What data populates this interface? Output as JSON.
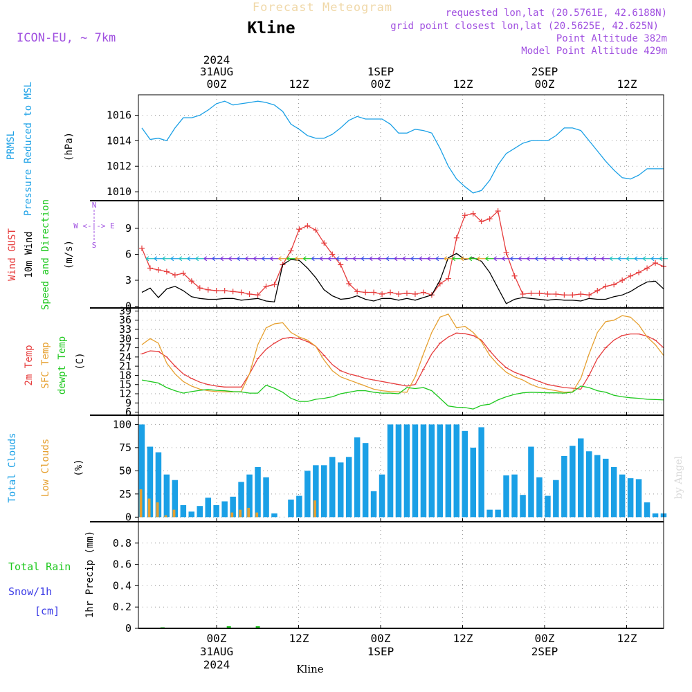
{
  "header": {
    "title": "Forecast Meteogram",
    "location": "Kline",
    "model": "ICON-EU, ~ 7km",
    "requested": "requested lon,lat (20.5761E, 42.6188N)",
    "gridpoint": "grid point closest lon,lat (20.5625E, 42.625N)",
    "point_alt": "Point Altitude 382m",
    "model_alt": "Model Point Altitude 429m"
  },
  "top_axis": {
    "labels": [
      {
        "line1": "2024",
        "line2": "31AUG",
        "line3": "00Z"
      },
      {
        "line1": "",
        "line2": "",
        "line3": "12Z"
      },
      {
        "line1": "",
        "line2": "1SEP",
        "line3": "00Z"
      },
      {
        "line1": "",
        "line2": "",
        "line3": "12Z"
      },
      {
        "line1": "",
        "line2": "2SEP",
        "line3": "00Z"
      },
      {
        "line1": "",
        "line2": "",
        "line3": "12Z"
      }
    ]
  },
  "bottom_axis": {
    "labels": [
      {
        "line1": "00Z",
        "line2": "31AUG",
        "line3": "2024"
      },
      {
        "line1": "12Z",
        "line2": "",
        "line3": ""
      },
      {
        "line1": "00Z",
        "line2": "1SEP",
        "line3": ""
      },
      {
        "line1": "12Z",
        "line2": "",
        "line3": ""
      },
      {
        "line1": "00Z",
        "line2": "2SEP",
        "line3": ""
      },
      {
        "line1": "12Z",
        "line2": "",
        "line3": ""
      }
    ],
    "footer": "Kline"
  },
  "watermark": "by Angel",
  "colors": {
    "pressure": "#1aa0e6",
    "gust": "#e63c3c",
    "wind": "#000000",
    "temp2m": "#e63c3c",
    "sfc": "#e6a030",
    "dewpt": "#1ec81e",
    "total_clouds": "#1aa0e6",
    "low_clouds": "#e6a030",
    "rain": "#1ec81e",
    "snow": "#3c3ce6",
    "header": "#a050e0"
  },
  "panel_labels": {
    "pressure": [
      "PRMSL",
      "Pressure Reduced to MSL",
      "(hPa)"
    ],
    "wind": [
      "Wind GUST",
      "10m Wind",
      "Speed and Direction",
      "(m/s)"
    ],
    "compass": [
      "N",
      "S",
      "W <-|-> E"
    ],
    "temp": [
      "2m Temp",
      "SFC Temp",
      "dewpt Temp",
      "(C)"
    ],
    "clouds": [
      "Total Clouds",
      "Low Clouds",
      "(%)"
    ],
    "precip": [
      "Total   Rain",
      "Snow/1h",
      "[cm]",
      "1hr Precip (mm)"
    ]
  },
  "chart_data": [
    {
      "type": "line",
      "panel": "pressure",
      "x_hours": [
        0,
        2,
        4,
        6,
        8,
        10,
        12,
        14,
        16,
        18,
        20,
        22,
        24,
        26,
        28,
        30,
        32,
        34,
        36,
        38,
        40,
        42,
        44,
        46,
        48,
        50,
        52,
        54,
        56,
        58,
        60,
        62,
        64,
        66,
        68,
        70,
        72,
        74,
        76,
        78,
        80,
        82,
        84,
        86,
        88,
        90,
        92,
        94,
        96,
        98,
        100,
        102,
        104,
        106,
        108,
        110,
        112,
        114,
        116,
        118,
        120,
        122,
        124,
        126
      ],
      "series": [
        {
          "name": "PRMSL",
          "values": [
            1015.0,
            1014.1,
            1014.2,
            1014.0,
            1015.0,
            1015.8,
            1015.8,
            1016.0,
            1016.4,
            1016.9,
            1017.1,
            1016.8,
            1016.9,
            1017.0,
            1017.1,
            1017.0,
            1016.8,
            1016.3,
            1015.3,
            1014.9,
            1014.4,
            1014.2,
            1014.2,
            1014.5,
            1015.0,
            1015.6,
            1015.9,
            1015.7,
            1015.7,
            1015.7,
            1015.3,
            1014.6,
            1014.6,
            1014.9,
            1014.8,
            1014.6,
            1013.4,
            1012.0,
            1011.0,
            1010.4,
            1009.9,
            1010.1,
            1010.9,
            1012.1,
            1013.0,
            1013.4,
            1013.8,
            1014.0,
            1014.0,
            1014.0,
            1014.4,
            1015.0,
            1015.0,
            1014.8,
            1014.0,
            1013.2,
            1012.4,
            1011.7,
            1011.1,
            1011.0,
            1011.3,
            1011.8,
            1011.8,
            1011.8
          ]
        }
      ],
      "ylabel": "(hPa)",
      "ylim": [
        1009.3,
        1017.6
      ],
      "yticks": [
        1010,
        1012,
        1014,
        1016
      ]
    },
    {
      "type": "line",
      "panel": "wind",
      "x_hours": [
        0,
        2,
        4,
        6,
        8,
        10,
        12,
        14,
        16,
        18,
        20,
        22,
        24,
        26,
        28,
        30,
        32,
        34,
        36,
        38,
        40,
        42,
        44,
        46,
        48,
        50,
        52,
        54,
        56,
        58,
        60,
        62,
        64,
        66,
        68,
        70,
        72,
        74,
        76,
        78,
        80,
        82,
        84,
        86,
        88,
        90,
        92,
        94,
        96,
        98,
        100,
        102,
        104,
        106,
        108,
        110,
        112,
        114,
        116,
        118,
        120,
        122,
        124,
        126
      ],
      "series": [
        {
          "name": "Wind GUST",
          "values": [
            6.7,
            4.4,
            4.2,
            4.0,
            3.6,
            3.8,
            2.9,
            2.1,
            1.9,
            1.8,
            1.8,
            1.7,
            1.6,
            1.4,
            1.3,
            2.3,
            2.5,
            4.8,
            6.4,
            8.9,
            9.3,
            8.8,
            7.3,
            6.0,
            4.8,
            2.6,
            1.7,
            1.6,
            1.6,
            1.4,
            1.6,
            1.4,
            1.5,
            1.4,
            1.6,
            1.3,
            2.6,
            3.2,
            7.9,
            10.5,
            10.7,
            9.8,
            10.1,
            11.0,
            6.2,
            3.5,
            1.4,
            1.5,
            1.5,
            1.4,
            1.4,
            1.3,
            1.3,
            1.4,
            1.3,
            1.8,
            2.3,
            2.5,
            3.0,
            3.5,
            3.9,
            4.4,
            5.0,
            4.6
          ]
        },
        {
          "name": "10m Wind",
          "values": [
            1.6,
            2.1,
            1.0,
            2.0,
            2.3,
            1.8,
            1.1,
            0.9,
            0.8,
            0.8,
            0.9,
            0.9,
            0.7,
            0.8,
            0.9,
            0.6,
            0.5,
            4.8,
            5.4,
            5.3,
            4.4,
            3.3,
            1.9,
            1.2,
            0.8,
            0.9,
            1.2,
            0.8,
            0.6,
            0.9,
            0.9,
            0.7,
            0.9,
            0.7,
            1.0,
            1.3,
            3.0,
            5.6,
            6.1,
            5.4,
            5.6,
            5.2,
            3.9,
            2.1,
            0.3,
            0.8,
            1.0,
            0.9,
            0.8,
            0.7,
            0.8,
            0.7,
            0.7,
            0.6,
            0.9,
            0.8,
            0.8,
            1.1,
            1.3,
            1.7,
            2.3,
            2.8,
            2.9,
            2.0
          ]
        }
      ],
      "ylabel": "(m/s)",
      "ylim": [
        -0.2,
        12.2
      ],
      "yticks": [
        0,
        3,
        6,
        9
      ]
    },
    {
      "type": "line",
      "panel": "temp",
      "x_hours": [
        0,
        2,
        4,
        6,
        8,
        10,
        12,
        14,
        16,
        18,
        20,
        22,
        24,
        26,
        28,
        30,
        32,
        34,
        36,
        38,
        40,
        42,
        44,
        46,
        48,
        50,
        52,
        54,
        56,
        58,
        60,
        62,
        64,
        66,
        68,
        70,
        72,
        74,
        76,
        78,
        80,
        82,
        84,
        86,
        88,
        90,
        92,
        94,
        96,
        98,
        100,
        102,
        104,
        106,
        108,
        110,
        112,
        114,
        116,
        118,
        120,
        122,
        124,
        126
      ],
      "series": [
        {
          "name": "2m Temp",
          "values": [
            25.0,
            26.0,
            25.8,
            24.0,
            21.0,
            18.5,
            17.0,
            15.8,
            15.0,
            14.5,
            14.2,
            14.2,
            14.2,
            18.5,
            23.5,
            26.5,
            28.5,
            30.0,
            30.4,
            30.0,
            29.0,
            27.5,
            24.5,
            21.5,
            19.5,
            18.5,
            17.8,
            17.0,
            16.5,
            16.0,
            15.5,
            15.0,
            14.5,
            15.0,
            20.0,
            25.0,
            28.5,
            30.5,
            31.8,
            31.6,
            31.0,
            29.5,
            26.0,
            23.0,
            20.5,
            19.0,
            18.0,
            17.0,
            16.0,
            15.0,
            14.5,
            14.0,
            13.8,
            13.5,
            18.0,
            23.5,
            27.0,
            29.5,
            31.0,
            31.5,
            31.5,
            30.8,
            29.5,
            27.0
          ]
        },
        {
          "name": "SFC Temp",
          "values": [
            28.0,
            30.0,
            28.5,
            22.0,
            18.5,
            16.0,
            14.5,
            13.5,
            13.0,
            12.7,
            12.6,
            12.6,
            12.7,
            18.5,
            28.0,
            33.5,
            34.8,
            35.2,
            32.0,
            30.5,
            29.5,
            27.5,
            23.0,
            19.5,
            17.5,
            16.5,
            15.5,
            14.5,
            13.5,
            13.0,
            12.7,
            12.6,
            12.5,
            17.5,
            25.0,
            32.0,
            37.0,
            38.0,
            33.5,
            34.0,
            32.0,
            29.0,
            24.5,
            21.5,
            19.0,
            17.5,
            16.5,
            15.0,
            14.0,
            13.5,
            13.0,
            12.5,
            12.6,
            17.0,
            25.0,
            32.0,
            35.5,
            36.0,
            37.5,
            37.0,
            34.5,
            30.5,
            28.0,
            24.5
          ]
        },
        {
          "name": "dewpt Temp",
          "values": [
            16.5,
            16.0,
            15.5,
            14.0,
            13.0,
            12.2,
            12.7,
            13.1,
            13.4,
            13.1,
            13.0,
            12.7,
            12.6,
            12.2,
            12.2,
            14.8,
            13.8,
            12.5,
            10.5,
            9.5,
            9.5,
            10.2,
            10.5,
            11.0,
            12.0,
            12.5,
            13.0,
            13.0,
            12.5,
            12.2,
            12.2,
            12.0,
            14.0,
            13.7,
            14.0,
            13.0,
            10.5,
            8.0,
            7.6,
            7.5,
            7.0,
            8.2,
            8.6,
            10.0,
            11.0,
            11.8,
            12.3,
            12.5,
            12.4,
            12.3,
            12.3,
            12.2,
            12.5,
            14.5,
            14.0,
            13.0,
            12.5,
            11.5,
            11.0,
            10.7,
            10.5,
            10.2,
            10.1,
            10.0
          ]
        }
      ],
      "ylabel": "(C)",
      "ylim": [
        5.0,
        40.0
      ],
      "yticks": [
        6,
        9,
        12,
        15,
        18,
        21,
        24,
        27,
        30,
        33,
        36,
        39
      ]
    },
    {
      "type": "bar",
      "panel": "clouds",
      "x_hours": [
        0,
        2,
        4,
        6,
        8,
        10,
        12,
        14,
        16,
        18,
        20,
        22,
        24,
        26,
        28,
        30,
        32,
        34,
        36,
        38,
        40,
        42,
        44,
        46,
        48,
        50,
        52,
        54,
        56,
        58,
        60,
        62,
        64,
        66,
        68,
        70,
        72,
        74,
        76,
        78,
        80,
        82,
        84,
        86,
        88,
        90,
        92,
        94,
        96,
        98,
        100,
        102,
        104,
        106,
        108,
        110,
        112,
        114,
        116,
        118,
        120,
        122,
        124,
        126
      ],
      "series": [
        {
          "name": "Total Clouds",
          "values": [
            100,
            76,
            70,
            46,
            40,
            13,
            6,
            12,
            21,
            13,
            17,
            22,
            38,
            46,
            54,
            43,
            4,
            0,
            19,
            23,
            50,
            56,
            56,
            65,
            59,
            65,
            86,
            80,
            28,
            46,
            100,
            100,
            100,
            100,
            100,
            100,
            100,
            100,
            100,
            93,
            75,
            97,
            8,
            8,
            45,
            46,
            24,
            76,
            43,
            23,
            40,
            66,
            77,
            85,
            71,
            67,
            63,
            54,
            46,
            42,
            41,
            16,
            4,
            4
          ]
        },
        {
          "name": "Low Clouds",
          "values": [
            30,
            20,
            16,
            2,
            8,
            0,
            0,
            0,
            0,
            0,
            0,
            5,
            8,
            10,
            5,
            0,
            0,
            0,
            0,
            0,
            0,
            18,
            0,
            0,
            0,
            0,
            0,
            0,
            0,
            0,
            0,
            0,
            0,
            0,
            0,
            0,
            0,
            0,
            0,
            0,
            0,
            0,
            0,
            0,
            0,
            0,
            0,
            0,
            0,
            0,
            0,
            0,
            0,
            0,
            0,
            0,
            0,
            0,
            0,
            0,
            0,
            0,
            0,
            0
          ]
        }
      ],
      "ylabel": "(%)",
      "ylim": [
        -5,
        110
      ],
      "yticks": [
        0,
        25,
        50,
        75,
        100
      ]
    },
    {
      "type": "bar",
      "panel": "precip",
      "series": [
        {
          "name": "Total Rain",
          "x_hours": [
            5,
            21,
            28
          ],
          "values": [
            0.01,
            0.02,
            0.02
          ]
        }
      ],
      "ylabel": "1hr Precip (mm)",
      "ylim": [
        0,
        1.0
      ],
      "yticks": [
        "0",
        "0.2",
        "0.4",
        "0.6",
        "0.8"
      ]
    }
  ]
}
